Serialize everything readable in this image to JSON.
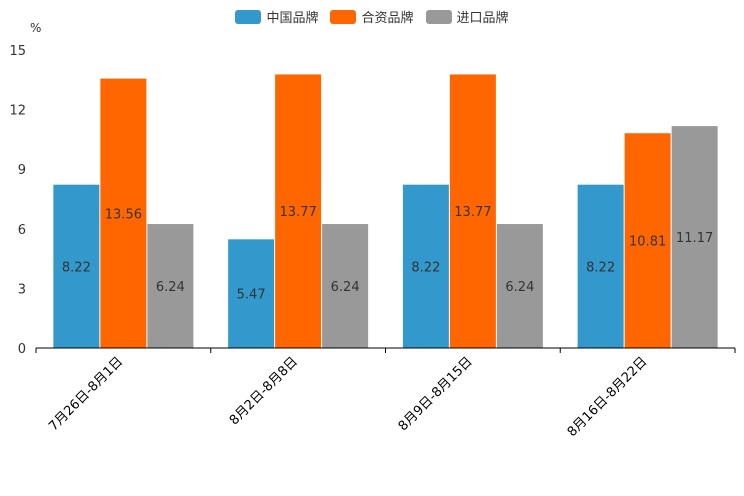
{
  "chart_data": {
    "type": "bar",
    "title": "",
    "unit": "%",
    "xlabel": "",
    "ylabel": "%",
    "ylim": [
      0,
      15
    ],
    "yticks": [
      0,
      3,
      6,
      9,
      12,
      15
    ],
    "categories": [
      "7月26日-8月1日",
      "8月2日-8月8日",
      "8月9日-8月15日",
      "8月16日-8月22日"
    ],
    "series": [
      {
        "name": "中国品牌",
        "color": "#3399cc",
        "values": [
          8.22,
          5.47,
          8.22,
          8.22
        ]
      },
      {
        "name": "合资品牌",
        "color": "#ff6600",
        "values": [
          13.56,
          13.77,
          13.77,
          10.81
        ]
      },
      {
        "name": "进口品牌",
        "color": "#999999",
        "values": [
          6.24,
          6.24,
          6.24,
          11.17
        ]
      }
    ]
  }
}
